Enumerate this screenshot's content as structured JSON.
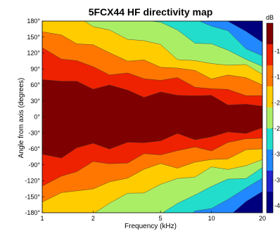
{
  "chart_data": {
    "type": "heatmap",
    "title": "5FCX44 HF directivity map",
    "xlabel": "Frequency (kHz)",
    "ylabel": "Angle from axis (degrees)",
    "x_scale": "log",
    "x_ticks": [
      1,
      2,
      5,
      10,
      20
    ],
    "x_tick_labels": [
      "1",
      "2",
      "5",
      "10",
      "20"
    ],
    "xlim": [
      1,
      20
    ],
    "y_ticks": [
      180,
      150,
      120,
      90,
      60,
      30,
      0,
      -30,
      -60,
      -90,
      -120,
      -150,
      -180
    ],
    "y_tick_labels": [
      "180°",
      "150°",
      "120°",
      "90°",
      "60°",
      "30°",
      "0°",
      "-30°",
      "-60°",
      "-90°",
      "-120°",
      "-150°",
      "-180°"
    ],
    "ylim": [
      -180,
      180
    ],
    "colorbar": {
      "unit": "dB",
      "visible_tick_labels": [
        "-1",
        "-1",
        "-2",
        "-2",
        "-3",
        "-3",
        "-4"
      ],
      "min_db": -45,
      "max_db": 0,
      "levels_db": [
        -6,
        -12,
        -18,
        -24,
        -30,
        -36,
        -42
      ],
      "colors": [
        "#7f0000",
        "#ee2200",
        "#ff7700",
        "#ffcc00",
        "#aaee66",
        "#22ddcc",
        "#2288ff",
        "#2222cc",
        "#00007f"
      ]
    },
    "frequency_khz": [
      1,
      1.3,
      1.6,
      2,
      2.5,
      3.2,
      4,
      5,
      6.3,
      8,
      10,
      12.5,
      16,
      20
    ],
    "iso_contours_deg": {
      "-6": [
        70,
        70,
        62,
        55,
        55,
        50,
        45,
        42,
        40,
        40,
        35,
        30,
        25,
        20
      ],
      "-12": [
        130,
        115,
        100,
        90,
        85,
        80,
        75,
        70,
        65,
        60,
        55,
        50,
        45,
        40
      ],
      "-18": [
        160,
        150,
        140,
        130,
        125,
        110,
        100,
        95,
        90,
        85,
        80,
        75,
        70,
        60
      ],
      "-24": [
        200,
        200,
        190,
        175,
        160,
        150,
        140,
        130,
        115,
        105,
        100,
        100,
        90,
        80
      ],
      "-30": [
        200,
        200,
        200,
        200,
        200,
        195,
        185,
        175,
        165,
        145,
        130,
        125,
        110,
        95
      ],
      "-36": [
        200,
        200,
        200,
        200,
        200,
        200,
        200,
        200,
        200,
        185,
        170,
        155,
        135,
        115
      ],
      "-42": [
        200,
        200,
        200,
        200,
        200,
        200,
        200,
        200,
        200,
        200,
        200,
        180,
        160,
        140
      ]
    }
  }
}
